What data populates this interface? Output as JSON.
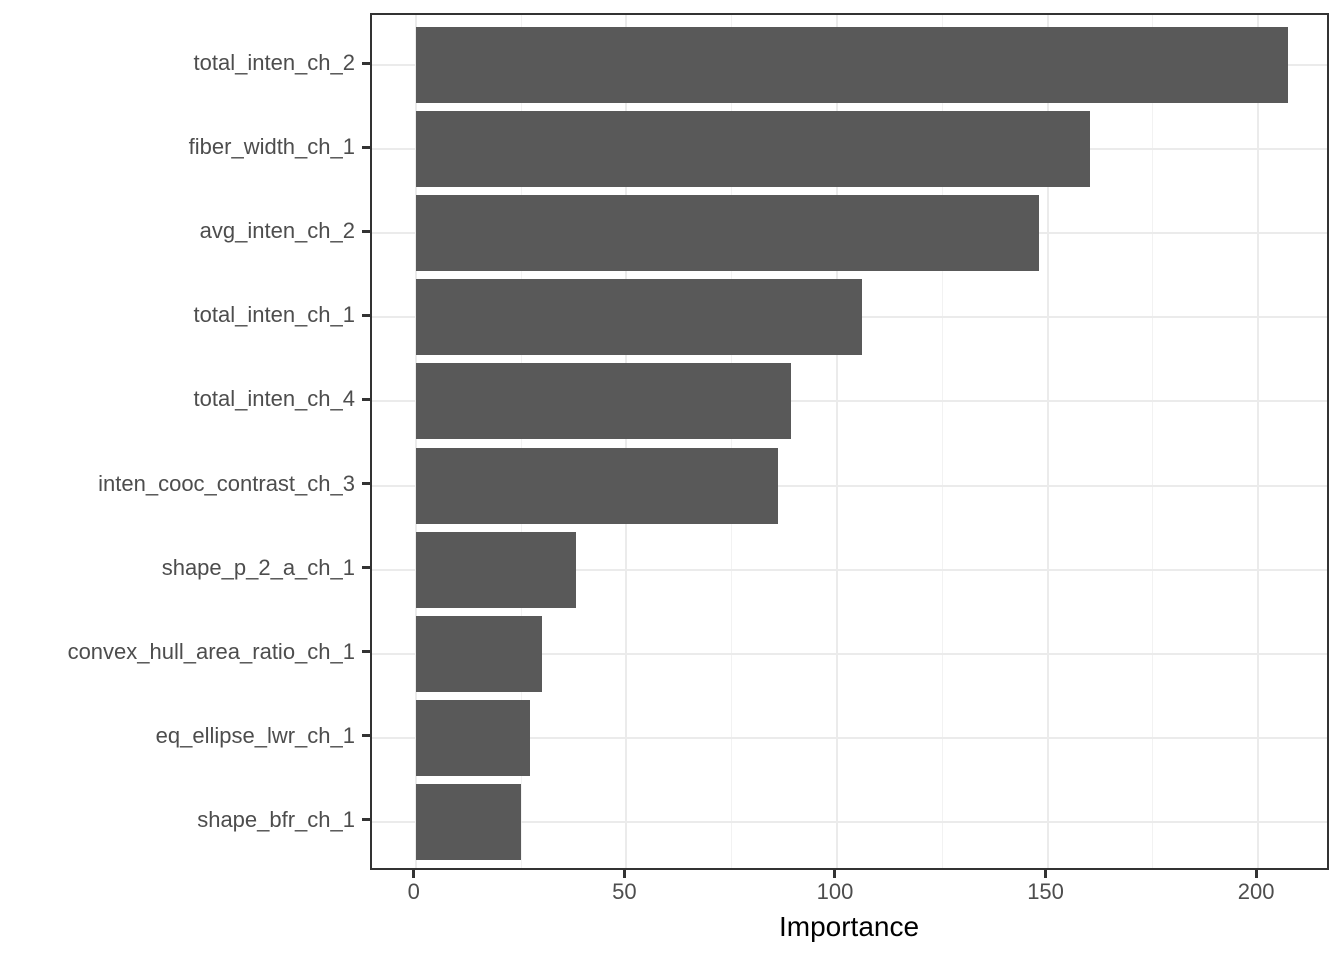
{
  "chart_data": {
    "type": "bar",
    "orientation": "horizontal",
    "title": "",
    "xlabel": "Importance",
    "ylabel": "",
    "categories": [
      "total_inten_ch_2",
      "fiber_width_ch_1",
      "avg_inten_ch_2",
      "total_inten_ch_1",
      "total_inten_ch_4",
      "inten_cooc_contrast_ch_3",
      "shape_p_2_a_ch_1",
      "convex_hull_area_ratio_ch_1",
      "eq_ellipse_lwr_ch_1",
      "shape_bfr_ch_1"
    ],
    "values": [
      207,
      160,
      148,
      106,
      89,
      86,
      38,
      30,
      27,
      25
    ],
    "x_ticks": [
      0,
      50,
      100,
      150,
      200
    ],
    "x_tick_labels": [
      "0",
      "50",
      "100",
      "150",
      "200"
    ],
    "x_minor_gridlines": [
      25,
      75,
      125,
      175
    ],
    "xlim": [
      -10.4,
      217.3
    ],
    "bar_width_fraction": 0.9,
    "grid": true,
    "legend_position": "none",
    "colors": {
      "bar_fill": "#595959",
      "panel_border": "#333333",
      "grid_major": "#ebebeb",
      "grid_minor": "#f2f2f2",
      "axis_text": "#4d4d4d",
      "axis_title": "#000000",
      "tick_mark": "#333333",
      "background": "#ffffff"
    }
  }
}
